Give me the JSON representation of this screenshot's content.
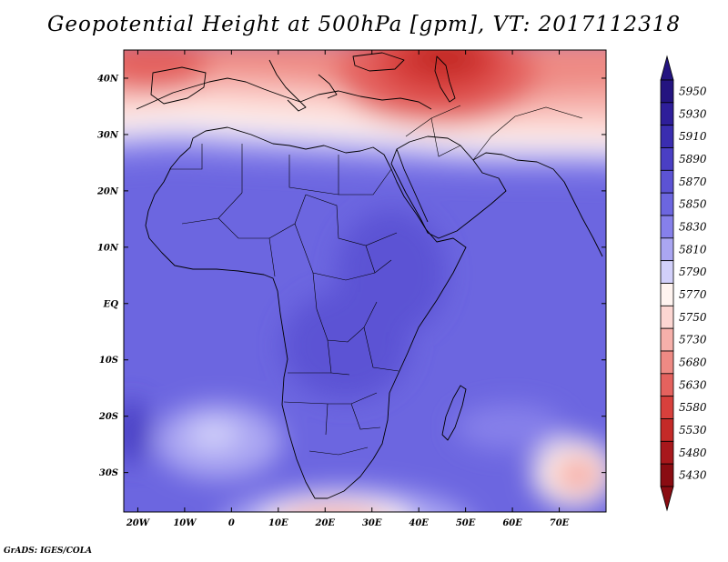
{
  "title": "Geopotential Height at 500hPa [gpm], VT: 2017112318",
  "credit": "GrADS: IGES/COLA",
  "map": {
    "lon_range": [
      -23,
      80
    ],
    "lat_range": [
      -37,
      45
    ],
    "lat_labels": [
      {
        "lat": 40,
        "text": "40N"
      },
      {
        "lat": 30,
        "text": "30N"
      },
      {
        "lat": 20,
        "text": "20N"
      },
      {
        "lat": 10,
        "text": "10N"
      },
      {
        "lat": 0,
        "text": "EQ"
      },
      {
        "lat": -10,
        "text": "10S"
      },
      {
        "lat": -20,
        "text": "20S"
      },
      {
        "lat": -30,
        "text": "30S"
      }
    ],
    "lon_labels": [
      {
        "lon": -20,
        "text": "20W"
      },
      {
        "lon": -10,
        "text": "10W"
      },
      {
        "lon": 0,
        "text": "0"
      },
      {
        "lon": 10,
        "text": "10E"
      },
      {
        "lon": 20,
        "text": "20E"
      },
      {
        "lon": 30,
        "text": "30E"
      },
      {
        "lon": 40,
        "text": "40E"
      },
      {
        "lon": 50,
        "text": "50E"
      },
      {
        "lon": 60,
        "text": "60E"
      },
      {
        "lon": 70,
        "text": "70E"
      }
    ]
  },
  "colorbar": {
    "levels": [
      {
        "label": "5950",
        "color": "#241480"
      },
      {
        "label": "5930",
        "color": "#2e1e9a"
      },
      {
        "label": "5910",
        "color": "#3a2db0"
      },
      {
        "label": "5890",
        "color": "#4a3fc4"
      },
      {
        "label": "5870",
        "color": "#5c53d4"
      },
      {
        "label": "5850",
        "color": "#6c66e0"
      },
      {
        "label": "5830",
        "color": "#8680ea"
      },
      {
        "label": "5810",
        "color": "#aaa6f2"
      },
      {
        "label": "5790",
        "color": "#d2d0fa"
      },
      {
        "label": "5770",
        "color": "#fff4f0"
      },
      {
        "label": "5750",
        "color": "#fcd6d2"
      },
      {
        "label": "5730",
        "color": "#f6b0aa"
      },
      {
        "label": "5680",
        "color": "#ee8a84"
      },
      {
        "label": "5630",
        "color": "#e4625e"
      },
      {
        "label": "5580",
        "color": "#d8403c"
      },
      {
        "label": "5530",
        "color": "#c42a28"
      },
      {
        "label": "5480",
        "color": "#a8181c"
      },
      {
        "label": "5430",
        "color": "#8a0c12"
      }
    ]
  }
}
